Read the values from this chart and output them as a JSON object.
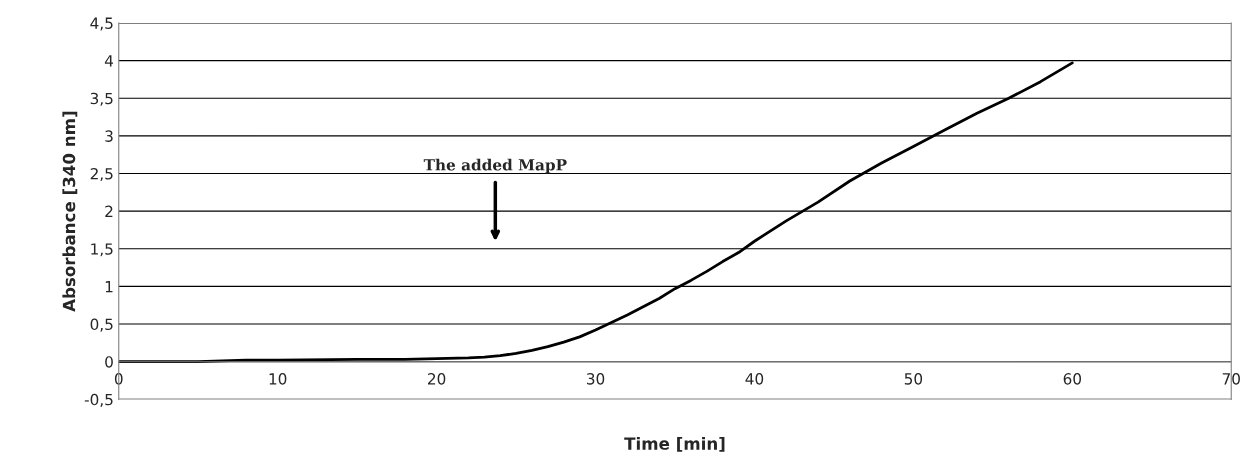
{
  "chart_data": {
    "type": "line",
    "xlabel": "Time [min]",
    "ylabel": "Absorbance [340 nm]",
    "x": [
      0,
      5,
      8,
      10,
      15,
      18,
      20,
      22,
      23,
      24,
      25,
      26,
      27,
      28,
      29,
      30,
      31,
      32,
      33,
      34,
      35,
      36,
      37,
      38,
      39,
      40,
      42,
      44,
      46,
      48,
      50,
      52,
      54,
      55,
      56,
      58,
      60
    ],
    "series": [
      {
        "color": "#000000",
        "values": [
          0,
          0,
          0.02,
          0.02,
          0.03,
          0.03,
          0.04,
          0.05,
          0.06,
          0.08,
          0.11,
          0.15,
          0.2,
          0.26,
          0.33,
          0.42,
          0.52,
          0.62,
          0.73,
          0.84,
          0.97,
          1.08,
          1.2,
          1.33,
          1.45,
          1.6,
          1.87,
          2.12,
          2.4,
          2.64,
          2.86,
          3.08,
          3.3,
          3.4,
          3.5,
          3.72,
          3.97
        ]
      }
    ],
    "xlim": [
      0,
      70
    ],
    "xticks": [
      0,
      10,
      20,
      30,
      40,
      50,
      60,
      70
    ],
    "ylim": [
      -0.5,
      4.5
    ],
    "yticks": [
      {
        "value": -0.5,
        "label": "-0,5"
      },
      0,
      {
        "value": 0.5,
        "label": "0,5"
      },
      1,
      {
        "value": 1.5,
        "label": "1,5"
      },
      2,
      {
        "value": 2.5,
        "label": "2,5"
      },
      3,
      {
        "value": 3.5,
        "label": "3,5"
      },
      4,
      {
        "value": 4.5,
        "label": "4,5"
      }
    ],
    "grid": "y",
    "legend": false,
    "marker": "none",
    "line_style": "solid",
    "annotations": [
      "The added MapP"
    ]
  }
}
